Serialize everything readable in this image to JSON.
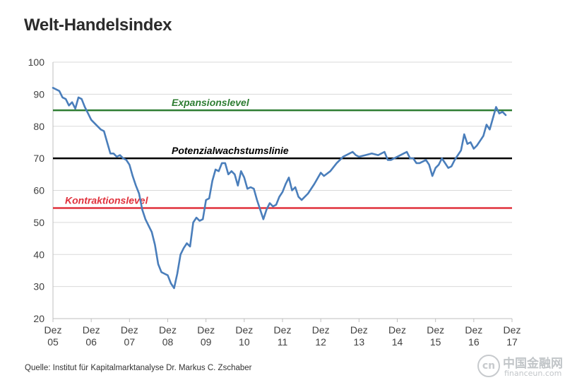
{
  "chart_data": {
    "type": "line",
    "title": "Welt-Handelsindex",
    "xlabel": "",
    "ylabel": "",
    "ylim": [
      20,
      100
    ],
    "yticks": [
      "20",
      "30",
      "40",
      "50",
      "60",
      "70",
      "80",
      "90",
      "100"
    ],
    "xlim": [
      "2005-12",
      "2017-12"
    ],
    "xtick_labels": [
      {
        "top": "Dez",
        "bottom": "05"
      },
      {
        "top": "Dez",
        "bottom": "06"
      },
      {
        "top": "Dez",
        "bottom": "07"
      },
      {
        "top": "Dez",
        "bottom": "08"
      },
      {
        "top": "Dez",
        "bottom": "09"
      },
      {
        "top": "Dez",
        "bottom": "10"
      },
      {
        "top": "Dez",
        "bottom": "11"
      },
      {
        "top": "Dez",
        "bottom": "12"
      },
      {
        "top": "Dez",
        "bottom": "13"
      },
      {
        "top": "Dez",
        "bottom": "14"
      },
      {
        "top": "Dez",
        "bottom": "15"
      },
      {
        "top": "Dez",
        "bottom": "16"
      },
      {
        "top": "Dez",
        "bottom": "17"
      }
    ],
    "grid": "horizontal",
    "series": [
      {
        "color": "#4a7ebb",
        "points": [
          [
            "2005-12",
            92
          ],
          [
            "2006-02",
            91
          ],
          [
            "2006-03",
            89
          ],
          [
            "2006-04",
            88.5
          ],
          [
            "2006-05",
            86.5
          ],
          [
            "2006-06",
            87.5
          ],
          [
            "2006-07",
            85.5
          ],
          [
            "2006-08",
            89
          ],
          [
            "2006-09",
            88.5
          ],
          [
            "2006-10",
            86
          ],
          [
            "2006-11",
            84
          ],
          [
            "2006-12",
            82
          ],
          [
            "2007-02",
            80
          ],
          [
            "2007-03",
            79
          ],
          [
            "2007-04",
            78.5
          ],
          [
            "2007-05",
            75
          ],
          [
            "2007-06",
            71.5
          ],
          [
            "2007-07",
            71.5
          ],
          [
            "2007-08",
            70.5
          ],
          [
            "2007-09",
            71
          ],
          [
            "2007-10",
            70
          ],
          [
            "2007-11",
            69.5
          ],
          [
            "2007-12",
            68
          ],
          [
            "2008-01",
            64.5
          ],
          [
            "2008-02",
            61.5
          ],
          [
            "2008-03",
            59
          ],
          [
            "2008-04",
            54
          ],
          [
            "2008-05",
            51
          ],
          [
            "2008-06",
            49
          ],
          [
            "2008-07",
            47
          ],
          [
            "2008-08",
            43
          ],
          [
            "2008-09",
            37
          ],
          [
            "2008-10",
            34.5
          ],
          [
            "2008-11",
            34
          ],
          [
            "2008-12",
            33.5
          ],
          [
            "2009-01",
            31
          ],
          [
            "2009-02",
            29.5
          ],
          [
            "2009-03",
            34
          ],
          [
            "2009-04",
            40
          ],
          [
            "2009-05",
            42
          ],
          [
            "2009-06",
            43.5
          ],
          [
            "2009-07",
            42.5
          ],
          [
            "2009-08",
            50
          ],
          [
            "2009-09",
            51.5
          ],
          [
            "2009-10",
            50.5
          ],
          [
            "2009-11",
            51
          ],
          [
            "2009-12",
            57
          ],
          [
            "2010-01",
            57.5
          ],
          [
            "2010-02",
            63
          ],
          [
            "2010-03",
            66.5
          ],
          [
            "2010-04",
            66
          ],
          [
            "2010-05",
            68.5
          ],
          [
            "2010-06",
            68.5
          ],
          [
            "2010-07",
            65
          ],
          [
            "2010-08",
            66
          ],
          [
            "2010-09",
            65
          ],
          [
            "2010-10",
            61.5
          ],
          [
            "2010-11",
            66
          ],
          [
            "2010-12",
            64
          ],
          [
            "2011-01",
            60.5
          ],
          [
            "2011-02",
            61
          ],
          [
            "2011-03",
            60.5
          ],
          [
            "2011-04",
            57
          ],
          [
            "2011-05",
            54
          ],
          [
            "2011-06",
            51
          ],
          [
            "2011-07",
            54
          ],
          [
            "2011-08",
            56
          ],
          [
            "2011-09",
            55
          ],
          [
            "2011-10",
            55.5
          ],
          [
            "2011-11",
            58
          ],
          [
            "2011-12",
            59.5
          ],
          [
            "2012-01",
            62
          ],
          [
            "2012-02",
            64
          ],
          [
            "2012-03",
            60
          ],
          [
            "2012-04",
            61
          ],
          [
            "2012-05",
            58
          ],
          [
            "2012-06",
            57
          ],
          [
            "2012-08",
            59
          ],
          [
            "2012-10",
            62
          ],
          [
            "2012-12",
            65.5
          ],
          [
            "2013-01",
            64.5
          ],
          [
            "2013-03",
            66
          ],
          [
            "2013-05",
            68.5
          ],
          [
            "2013-07",
            70.5
          ],
          [
            "2013-09",
            71.5
          ],
          [
            "2013-10",
            72
          ],
          [
            "2013-11",
            71
          ],
          [
            "2013-12",
            70.5
          ],
          [
            "2014-02",
            71
          ],
          [
            "2014-04",
            71.5
          ],
          [
            "2014-06",
            71
          ],
          [
            "2014-08",
            72
          ],
          [
            "2014-09",
            69.5
          ],
          [
            "2014-10",
            69.5
          ],
          [
            "2014-12",
            70.5
          ],
          [
            "2015-02",
            71.5
          ],
          [
            "2015-03",
            72
          ],
          [
            "2015-04",
            70
          ],
          [
            "2015-05",
            70
          ],
          [
            "2015-06",
            68.5
          ],
          [
            "2015-07",
            68.5
          ],
          [
            "2015-08",
            69
          ],
          [
            "2015-09",
            69.5
          ],
          [
            "2015-10",
            68
          ],
          [
            "2015-11",
            64.5
          ],
          [
            "2015-12",
            67
          ],
          [
            "2016-01",
            68
          ],
          [
            "2016-02",
            70
          ],
          [
            "2016-03",
            68.5
          ],
          [
            "2016-04",
            67
          ],
          [
            "2016-05",
            67.5
          ],
          [
            "2016-06",
            69.5
          ],
          [
            "2016-07",
            71
          ],
          [
            "2016-08",
            72.5
          ],
          [
            "2016-09",
            77.5
          ],
          [
            "2016-10",
            74.5
          ],
          [
            "2016-11",
            75
          ],
          [
            "2016-12",
            73
          ],
          [
            "2017-01",
            74
          ],
          [
            "2017-02",
            75.5
          ],
          [
            "2017-03",
            77
          ],
          [
            "2017-04",
            80.5
          ],
          [
            "2017-05",
            79
          ],
          [
            "2017-06",
            82.5
          ],
          [
            "2017-07",
            86
          ],
          [
            "2017-08",
            84
          ],
          [
            "2017-09",
            84.5
          ],
          [
            "2017-10",
            83.5
          ]
        ]
      }
    ],
    "reference_lines": [
      {
        "label": "Expansionslevel",
        "value": 85,
        "color": "#2e7d32"
      },
      {
        "label": "Potenzialwachstumslinie",
        "value": 70,
        "color": "#000000"
      },
      {
        "label": "Kontraktionslevel",
        "value": 54.5,
        "color": "#e0313c"
      }
    ]
  },
  "source": "Quelle: Institut für Kapitalmarktanalyse Dr. Markus C. Zschaber",
  "watermark": {
    "icon": "logo-icon",
    "cn": "中国金融网",
    "en": "financeun.com"
  }
}
